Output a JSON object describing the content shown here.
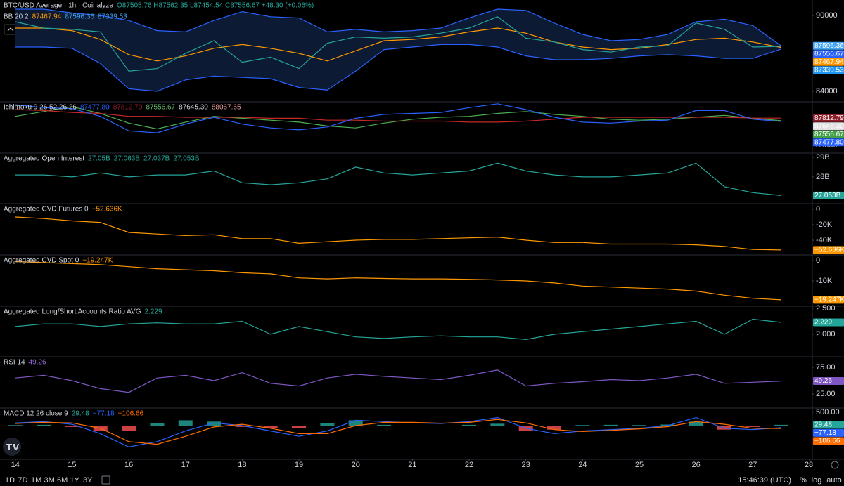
{
  "chart_data": [
    {
      "type": "line",
      "header": [
        [
          {
            "text": "BTC/USD Average · 1h · Coinalyze",
            "color": "#d1d4dc"
          },
          {
            "text": "O87505.76 H87562.35 L87454.54 C87556.67 +48.30 (+0.06%)",
            "color": "#26a69a"
          }
        ],
        [
          {
            "text": "BB 20 2",
            "color": "#d1d4dc"
          },
          {
            "text": "87467.94",
            "color": "#ff9800"
          },
          {
            "text": "87596.36",
            "color": "#42a5f5"
          },
          {
            "text": "87339.53",
            "color": "#42a5f5"
          }
        ]
      ],
      "xlim": [
        13.73,
        28.05
      ],
      "ylim": [
        83170,
        91220
      ],
      "yticks": [
        84000,
        90000
      ],
      "x": [
        14,
        14.5,
        15,
        15.5,
        16,
        16.5,
        17,
        17.5,
        18,
        18.5,
        19,
        19.5,
        20,
        20.5,
        21,
        21.5,
        22,
        22.5,
        23,
        23.5,
        24,
        24.5,
        25,
        25.5,
        26,
        26.5,
        27,
        27.5
      ],
      "series": [
        {
          "color": "#2962ff",
          "fill": "#0d1a33",
          "values": [
            90500,
            90500,
            90200,
            90000,
            89600,
            88800,
            88700,
            89600,
            90300,
            89900,
            89800,
            88700,
            88900,
            88700,
            88800,
            89000,
            89800,
            90500,
            90400,
            89400,
            88500,
            88000,
            88100,
            88500,
            89500,
            89700,
            89200,
            87596.36
          ]
        },
        {
          "color": "#2962ff",
          "values": [
            87500,
            87500,
            87400,
            86200,
            84200,
            84000,
            84900,
            85200,
            85100,
            85000,
            84300,
            84100,
            85600,
            87300,
            87500,
            87700,
            87700,
            87500,
            86800,
            86500,
            86500,
            86600,
            86800,
            86900,
            86800,
            86600,
            86600,
            87339.53
          ]
        },
        {
          "color": "#ff9800",
          "values": [
            89000,
            89000,
            88800,
            88100,
            86900,
            86400,
            86800,
            87400,
            87700,
            87400,
            87000,
            86400,
            87200,
            88000,
            88100,
            88300,
            88700,
            89000,
            88600,
            87900,
            87500,
            87300,
            87400,
            87700,
            88100,
            88200,
            87900,
            87467.94
          ]
        },
        {
          "color": "#26a69a",
          "values": [
            89500,
            89000,
            88900,
            88700,
            85600,
            85800,
            87000,
            88000,
            86300,
            86700,
            85800,
            87800,
            88300,
            88200,
            88300,
            88600,
            89000,
            89900,
            88200,
            87900,
            87300,
            87100,
            87500,
            87600,
            89400,
            88900,
            87500,
            87556.67
          ]
        }
      ],
      "badges": [
        {
          "value": 87596.36,
          "label": "87596.36",
          "color": "#42a5f5"
        },
        {
          "value": 87556.67,
          "label": "87556.67",
          "color": "#2962ff"
        },
        {
          "value": 87467.94,
          "label": "87467.94",
          "color": "#ff9800"
        },
        {
          "value": 87339.53,
          "label": "87339.53",
          "color": "#2196f3"
        }
      ]
    },
    {
      "type": "line",
      "header": [
        [
          {
            "text": "Ichimoku 9 26 52 26 26",
            "color": "#d1d4dc"
          },
          {
            "text": "87477.80",
            "color": "#2962ff"
          },
          {
            "text": "87812.79",
            "color": "#8e1e2a"
          },
          {
            "text": "87556.67",
            "color": "#66bb6a"
          },
          {
            "text": "87645.30",
            "color": "#d1d4dc"
          },
          {
            "text": "88067.65",
            "color": "#ef9a9a"
          }
        ]
      ],
      "xlim": [
        13.73,
        28.05
      ],
      "ylim": [
        84200,
        89500
      ],
      "yticks": [
        85000
      ],
      "x": [
        14,
        14.5,
        15,
        15.5,
        16,
        16.5,
        17,
        17.5,
        18,
        18.5,
        19,
        19.5,
        20,
        20.5,
        21,
        21.5,
        22,
        22.5,
        23,
        23.5,
        24,
        24.5,
        25,
        25.5,
        26,
        26.5,
        27,
        27.5
      ],
      "series": [
        {
          "color": "#4caf50",
          "values": [
            88000,
            88500,
            89000,
            88300,
            87300,
            86700,
            87400,
            88000,
            87800,
            87600,
            87400,
            87000,
            86800,
            87300,
            87700,
            87900,
            88000,
            88300,
            88500,
            88200,
            88000,
            87700,
            87600,
            87700,
            87900,
            88100,
            87800,
            87556.67
          ]
        },
        {
          "color": "#c62828",
          "values": [
            88700,
            88600,
            88400,
            88300,
            88000,
            88000,
            87900,
            87900,
            87900,
            87800,
            87800,
            87600,
            87600,
            87500,
            87500,
            87500,
            87400,
            87400,
            87500,
            87700,
            87900,
            87900,
            87900,
            87900,
            87900,
            87900,
            87812.79,
            87812.79
          ]
        },
        {
          "color": "#2962ff",
          "values": [
            89200,
            88900,
            88800,
            88000,
            86500,
            86300,
            87200,
            87900,
            87200,
            86800,
            86600,
            86900,
            87800,
            88200,
            88300,
            88400,
            88900,
            89300,
            88700,
            87900,
            87400,
            87300,
            87500,
            87600,
            88600,
            88600,
            87700,
            87477.8
          ]
        }
      ],
      "badges": [
        {
          "value": 87812.79,
          "label": "87812.79",
          "color": "#8e1e2a"
        },
        {
          "value": 87645.3,
          "label": "87645.30",
          "color": "#e0e0e0"
        },
        {
          "value": 87556.67,
          "label": "87556.67",
          "color": "#43a047"
        },
        {
          "value": 87477.8,
          "label": "87477.80",
          "color": "#2962ff"
        }
      ]
    },
    {
      "type": "line",
      "header": [
        [
          {
            "text": "Aggregated Open Interest",
            "color": "#d1d4dc"
          },
          {
            "text": "27.05B",
            "color": "#26a69a"
          },
          {
            "text": "27.063B",
            "color": "#26a69a"
          },
          {
            "text": "27.037B",
            "color": "#26a69a"
          },
          {
            "text": "27.053B",
            "color": "#26a69a"
          }
        ]
      ],
      "xlim": [
        13.73,
        28.05
      ],
      "ylim": [
        26.64,
        29.21
      ],
      "yticks": [
        {
          "value": 28,
          "label": "28B"
        },
        {
          "value": 29,
          "label": "29B"
        }
      ],
      "x": [
        14,
        14.5,
        15,
        15.5,
        16,
        16.5,
        17,
        17.5,
        18,
        18.5,
        19,
        19.5,
        20,
        20.5,
        21,
        21.5,
        22,
        22.5,
        23,
        23.5,
        24,
        24.5,
        25,
        25.5,
        26,
        26.5,
        27,
        27.5
      ],
      "series": [
        {
          "color": "#26a69a",
          "values": [
            28.1,
            28.1,
            28.0,
            28.2,
            28.0,
            28.1,
            28.1,
            28.3,
            27.7,
            27.6,
            27.7,
            27.9,
            28.5,
            28.2,
            28.1,
            28.2,
            28.3,
            28.7,
            28.3,
            28.1,
            28.0,
            28.0,
            28.1,
            28.2,
            28.7,
            27.5,
            27.2,
            27.053
          ]
        }
      ],
      "badges": [
        {
          "value": 27.053,
          "label": "27.053B",
          "color": "#26a69a"
        }
      ]
    },
    {
      "type": "line",
      "header": [
        [
          {
            "text": "Aggregated CVD Futures 0",
            "color": "#d1d4dc"
          },
          {
            "text": "−52.636K",
            "color": "#ff9800"
          }
        ]
      ],
      "xlim": [
        13.73,
        28.05
      ],
      "ylim": [
        -59.1,
        7.3
      ],
      "yticks": [
        {
          "value": -40,
          "label": "-40K"
        },
        {
          "value": -20,
          "label": "-20K"
        },
        0
      ],
      "x": [
        14,
        14.5,
        15,
        15.5,
        16,
        16.5,
        17,
        17.5,
        18,
        18.5,
        19,
        19.5,
        20,
        20.5,
        21,
        21.5,
        22,
        22.5,
        23,
        23.5,
        24,
        24.5,
        25,
        25.5,
        26,
        26.5,
        27,
        27.5
      ],
      "series": [
        {
          "color": "#ff9800",
          "values": [
            -10,
            -12,
            -15,
            -17,
            -30,
            -32,
            -34,
            -33,
            -38,
            -38,
            -44,
            -42,
            -40,
            -39,
            -39,
            -38,
            -37,
            -36,
            -40,
            -43,
            -43,
            -45,
            -45,
            -45,
            -46,
            -48,
            -52,
            -52.636
          ]
        }
      ],
      "badges": [
        {
          "value": -52.636,
          "label": "−52.636K",
          "color": "#ff9800"
        }
      ]
    },
    {
      "type": "line",
      "header": [
        [
          {
            "text": "Aggregated CVD Spot 0",
            "color": "#d1d4dc"
          },
          {
            "text": "−19.247K",
            "color": "#ff9800"
          }
        ]
      ],
      "xlim": [
        13.73,
        28.05
      ],
      "ylim": [
        -22.4,
        2.76
      ],
      "yticks": [
        {
          "value": -10,
          "label": "-10K"
        },
        0
      ],
      "x": [
        14,
        14.5,
        15,
        15.5,
        16,
        16.5,
        17,
        17.5,
        18,
        18.5,
        19,
        19.5,
        20,
        20.5,
        21,
        21.5,
        22,
        22.5,
        23,
        23.5,
        24,
        24.5,
        25,
        25.5,
        26,
        26.5,
        27,
        27.5
      ],
      "series": [
        {
          "color": "#ff9800",
          "values": [
            -0.5,
            -1,
            -1.5,
            -2,
            -3,
            -4,
            -4.5,
            -5,
            -6,
            -6.5,
            -8.5,
            -9,
            -8.5,
            -8.8,
            -9,
            -9,
            -9.2,
            -9.5,
            -10,
            -11,
            -12.5,
            -13,
            -13.5,
            -14,
            -15,
            -17,
            -18.5,
            -19.247
          ]
        }
      ],
      "badges": [
        {
          "value": -19.247,
          "label": "−19.247K",
          "color": "#ff9800"
        }
      ]
    },
    {
      "type": "line",
      "header": [
        [
          {
            "text": "Aggregated Long/Short Accounts Ratio AVG",
            "color": "#d1d4dc"
          },
          {
            "text": "2.229",
            "color": "#26a69a"
          }
        ]
      ],
      "xlim": [
        13.73,
        28.05
      ],
      "ylim": [
        1.568,
        2.54
      ],
      "yticks": [
        {
          "value": 2,
          "label": "2.000"
        },
        {
          "value": 2.5,
          "label": "2.500"
        }
      ],
      "x": [
        14,
        14.5,
        15,
        15.5,
        16,
        16.5,
        17,
        17.5,
        18,
        18.5,
        19,
        19.5,
        20,
        20.5,
        21,
        21.5,
        22,
        22.5,
        23,
        23.5,
        24,
        24.5,
        25,
        25.5,
        26,
        26.5,
        27,
        27.5
      ],
      "series": [
        {
          "color": "#26a69a",
          "values": [
            2.15,
            2.2,
            2.2,
            2.15,
            2.2,
            2.22,
            2.2,
            2.2,
            2.25,
            2.0,
            2.15,
            2.05,
            1.95,
            1.92,
            1.95,
            1.97,
            1.95,
            1.95,
            1.9,
            2.0,
            2.05,
            2.1,
            2.15,
            2.2,
            2.25,
            2.0,
            2.29,
            2.229
          ]
        }
      ],
      "badges": [
        {
          "value": 2.229,
          "label": "2.229",
          "color": "#26a69a"
        }
      ]
    },
    {
      "type": "line",
      "header": [
        [
          {
            "text": "RSI 14",
            "color": "#d1d4dc"
          },
          {
            "text": "49.26",
            "color": "#9c6ade"
          }
        ]
      ],
      "xlim": [
        13.73,
        28.05
      ],
      "ylim": [
        -1.3,
        94.7
      ],
      "yticks": [
        {
          "value": 25,
          "label": "25.00"
        },
        {
          "value": 75,
          "label": "75.00"
        }
      ],
      "x": [
        14,
        14.5,
        15,
        15.5,
        16,
        16.5,
        17,
        17.5,
        18,
        18.5,
        19,
        19.5,
        20,
        20.5,
        21,
        21.5,
        22,
        22.5,
        23,
        23.5,
        24,
        24.5,
        25,
        25.5,
        26,
        26.5,
        27,
        27.5
      ],
      "series": [
        {
          "color": "#7e57c2",
          "values": [
            55,
            60,
            50,
            35,
            28,
            55,
            60,
            50,
            65,
            45,
            40,
            55,
            62,
            58,
            55,
            52,
            60,
            70,
            40,
            45,
            48,
            52,
            50,
            55,
            62,
            45,
            47,
            49.26
          ]
        }
      ],
      "badges": [
        {
          "value": 49.26,
          "label": "49.26",
          "color": "#7e57c2"
        }
      ]
    },
    {
      "type": "line",
      "header": [
        [
          {
            "text": "MACD 12 26 close 9",
            "color": "#d1d4dc"
          },
          {
            "text": "29.48",
            "color": "#26a69a"
          },
          {
            "text": "−77.18",
            "color": "#2962ff"
          },
          {
            "text": "−106.66",
            "color": "#ff6d00"
          }
        ]
      ],
      "xlim": [
        13.73,
        28.05
      ],
      "ylim": [
        -1263,
        658
      ],
      "yticks": [
        {
          "value": 500,
          "label": "500.00"
        }
      ],
      "xticks": [
        14,
        15,
        16,
        17,
        18,
        19,
        20,
        21,
        22,
        23,
        24,
        25,
        26,
        27,
        28
      ],
      "x": [
        14,
        14.5,
        15,
        15.5,
        16,
        16.5,
        17,
        17.5,
        18,
        18.5,
        19,
        19.5,
        20,
        20.5,
        21,
        21.5,
        22,
        22.5,
        23,
        23.5,
        24,
        24.5,
        25,
        25.5,
        26,
        26.5,
        27,
        27.5
      ],
      "series": [
        {
          "kind": "bar",
          "color": "#26a69a",
          "negative_color": "#ff5252",
          "values": [
            20,
            30,
            -50,
            -200,
            -200,
            100,
            200,
            150,
            -50,
            -100,
            -100,
            100,
            200,
            30,
            -20,
            -10,
            30,
            70,
            -200,
            -150,
            20,
            30,
            20,
            40,
            150,
            -150,
            -50,
            29.48
          ]
        },
        {
          "color": "#2962ff",
          "values": [
            100,
            150,
            50,
            -300,
            -800,
            -600,
            -200,
            100,
            0,
            -200,
            -400,
            -200,
            200,
            150,
            100,
            80,
            150,
            300,
            -100,
            -300,
            -200,
            -150,
            -100,
            0,
            300,
            -100,
            -150,
            -77.18
          ]
        },
        {
          "color": "#ff6d00",
          "values": [
            80,
            120,
            100,
            -100,
            -600,
            -700,
            -400,
            -50,
            50,
            -100,
            -300,
            -300,
            0,
            120,
            120,
            90,
            120,
            230,
            100,
            -150,
            -220,
            -180,
            -120,
            -40,
            150,
            50,
            -100,
            -106.66
          ]
        }
      ],
      "badges": [
        {
          "value": 29.48,
          "label": "29.48",
          "color": "#26a69a"
        },
        {
          "value": -77.18,
          "label": "−77.18",
          "color": "#2962ff"
        },
        {
          "value": -106.66,
          "label": "−106.66",
          "color": "#ff6d00"
        }
      ]
    }
  ],
  "toolbar": {
    "periods": [
      "1D",
      "7D",
      "1M",
      "3M",
      "6M",
      "1Y",
      "3Y"
    ],
    "time": "15:46:39 (UTC)",
    "percent": "%",
    "log": "log",
    "auto": "auto"
  }
}
